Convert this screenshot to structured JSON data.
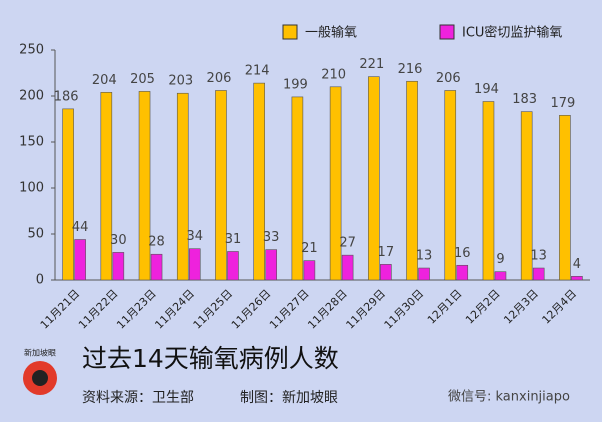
{
  "chart_data": {
    "type": "bar",
    "title": "过去14天输氧病例人数",
    "source": "资料来源：卫生部",
    "credit": "制图：新加坡眼",
    "watermark": "微信号: kanxinjiapo",
    "logo_text": "新加坡眼",
    "categories": [
      "11月21日",
      "11月22日",
      "11月23日",
      "11月24日",
      "11月25日",
      "11月26日",
      "11月27日",
      "11月28日",
      "11月29日",
      "11月30日",
      "12月1日",
      "12月2日",
      "12月3日",
      "12月4日"
    ],
    "series": [
      {
        "name": "一般输氧",
        "color": "#ffc000",
        "values": [
          186,
          204,
          205,
          203,
          206,
          214,
          199,
          210,
          221,
          216,
          206,
          194,
          183,
          179
        ]
      },
      {
        "name": "ICU密切监护输氧",
        "color": "#ee22dd",
        "values": [
          44,
          30,
          28,
          34,
          31,
          33,
          21,
          27,
          17,
          13,
          16,
          9,
          13,
          4
        ]
      }
    ],
    "ylim": [
      0,
      250
    ],
    "yticks": [
      0,
      50,
      100,
      150,
      200,
      250
    ],
    "grid": false,
    "legend": "top-right"
  }
}
